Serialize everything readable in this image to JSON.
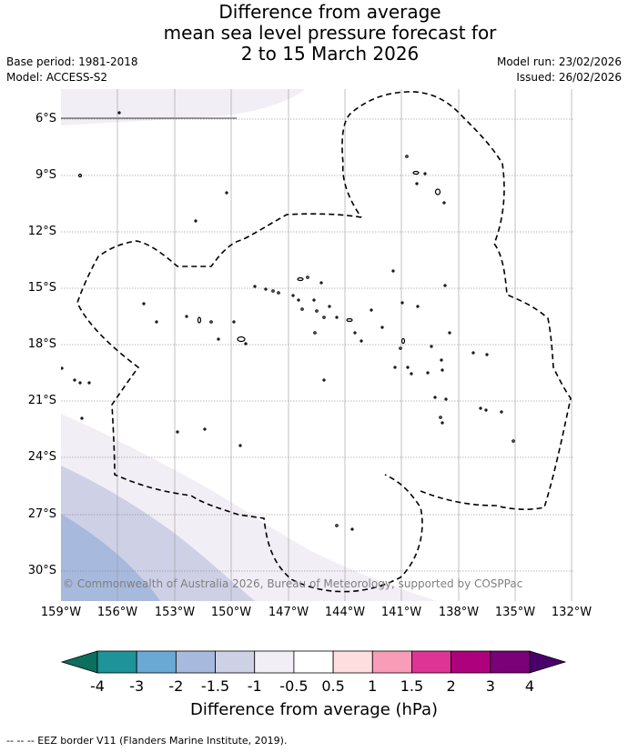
{
  "title_lines": [
    "Difference from average",
    "mean sea level pressure forecast for",
    "2 to 15 March 2026"
  ],
  "base_period": "Base period: 1981-2018",
  "model": "Model: ACCESS-S2",
  "model_run": "Model run: 23/02/2026",
  "issued": "Issued: 26/02/2026",
  "lat_labels": [
    "6°S",
    "9°S",
    "12°S",
    "15°S",
    "18°S",
    "21°S",
    "24°S",
    "27°S",
    "30°S"
  ],
  "lon_labels": [
    "159°W",
    "156°W",
    "153°W",
    "150°W",
    "147°W",
    "144°W",
    "141°W",
    "138°W",
    "135°W",
    "132°W"
  ],
  "copyright": "© Commonwealth of Australia 2026, Bureau of Meteorology, supported by COSPPac",
  "colorbar": {
    "ticks": [
      "-4",
      "-3",
      "-2",
      "-1.5",
      "-1",
      "-0.5",
      "0.5",
      "1",
      "1.5",
      "2",
      "3",
      "4"
    ],
    "colors": [
      "#1e9399",
      "#6aa9d4",
      "#a7b9dd",
      "#ced0e6",
      "#f2eef6",
      "#ffffff",
      "#fedede",
      "#f99cb8",
      "#dd3495",
      "#ae017e",
      "#7a0177"
    ],
    "under_color": "#0c6e5e",
    "over_color": "#49006a",
    "label": "Difference from average (hPa)"
  },
  "footer": "-- -- -- EEZ border V11 (Flanders Marine Institute, 2019)."
}
